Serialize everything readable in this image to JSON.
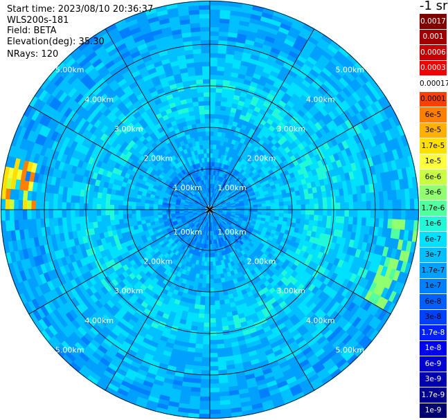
{
  "header": {
    "start_time": "Start time: 2023/08/10 20:36:37",
    "device": "WLS200s-181",
    "field": "Field: BETA",
    "elevation": "Elevation(deg): 35.30",
    "nrays": "NRays: 120"
  },
  "colorbar": {
    "unit": "-1 sr",
    "entries": [
      {
        "label": "0.0017",
        "color": "#800000",
        "text": "#ffffff"
      },
      {
        "label": "0.001",
        "color": "#a00000",
        "text": "#ffffff"
      },
      {
        "label": "0.0006",
        "color": "#c80000",
        "text": "#ffffff"
      },
      {
        "label": "0.0003",
        "color": "#f00000",
        "text": "#ffffff"
      },
      {
        "label": "0.00017",
        "color": "#ffffff",
        "text": "#000000"
      },
      {
        "label": "0.0001",
        "color": "#ff4000",
        "text": "#000000"
      },
      {
        "label": "6e-5",
        "color": "#ff8000",
        "text": "#000000"
      },
      {
        "label": "3e-5",
        "color": "#ffb000",
        "text": "#000000"
      },
      {
        "label": "1.7e-5",
        "color": "#ffe000",
        "text": "#000000"
      },
      {
        "label": "1e-5",
        "color": "#ffff40",
        "text": "#000000"
      },
      {
        "label": "6e-6",
        "color": "#c8ff40",
        "text": "#000000"
      },
      {
        "label": "3e-6",
        "color": "#90ff70",
        "text": "#000000"
      },
      {
        "label": "1.7e-6",
        "color": "#50ffa0",
        "text": "#000000"
      },
      {
        "label": "1e-6",
        "color": "#20f8d8",
        "text": "#000000"
      },
      {
        "label": "6e-7",
        "color": "#00e0ff",
        "text": "#000000"
      },
      {
        "label": "3e-7",
        "color": "#00c0ff",
        "text": "#000000"
      },
      {
        "label": "1.7e-7",
        "color": "#00a0ff",
        "text": "#000000"
      },
      {
        "label": "1e-7",
        "color": "#0080ff",
        "text": "#000000"
      },
      {
        "label": "6e-8",
        "color": "#0060ff",
        "text": "#000000"
      },
      {
        "label": "3e-8",
        "color": "#0040ff",
        "text": "#000000"
      },
      {
        "label": "1.7e-8",
        "color": "#0020ff",
        "text": "#ffffff"
      },
      {
        "label": "1e-8",
        "color": "#0000f0",
        "text": "#ffffff"
      },
      {
        "label": "6e-9",
        "color": "#0000d0",
        "text": "#ffffff"
      },
      {
        "label": "3e-9",
        "color": "#0000b0",
        "text": "#ffffff"
      },
      {
        "label": "1.7e-9",
        "color": "#000090",
        "text": "#ffffff"
      },
      {
        "label": "1e-9",
        "color": "#000070",
        "text": "#ffffff"
      }
    ]
  },
  "rings": {
    "labels": [
      "1.00km",
      "2.00km",
      "3.00km",
      "4.00km",
      "5.00km"
    ]
  },
  "palette": {
    "background_field": "#1ea0f0",
    "pixel_colors": [
      "#0064ff",
      "#0080ff",
      "#00a0ff",
      "#00c0ff",
      "#00e0ff",
      "#20f8d8",
      "#50ffa0",
      "#90ff70"
    ],
    "hotspot_colors": [
      "#ff8000",
      "#ffe000",
      "#ffff40",
      "#c8ff40"
    ],
    "grid_line": "#000000",
    "ring_label": "#ffffff"
  }
}
